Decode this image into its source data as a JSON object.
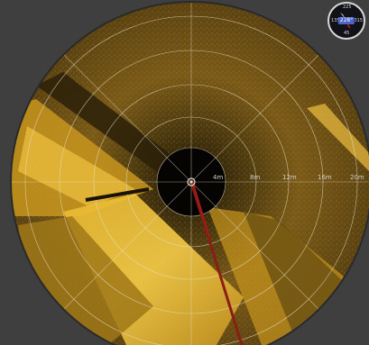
{
  "sonar": {
    "range_rings": [
      "4m",
      "8m",
      "12m",
      "16m",
      "20m"
    ],
    "heading_arrow_color": "#8a1e14",
    "display_color": "#c89a1c"
  },
  "compass": {
    "ticks": {
      "top": "225",
      "left": "135",
      "right": "315",
      "bottom": "45"
    },
    "heading": "228°",
    "pointer_color": "#d02020",
    "icon": "compass-icon"
  }
}
